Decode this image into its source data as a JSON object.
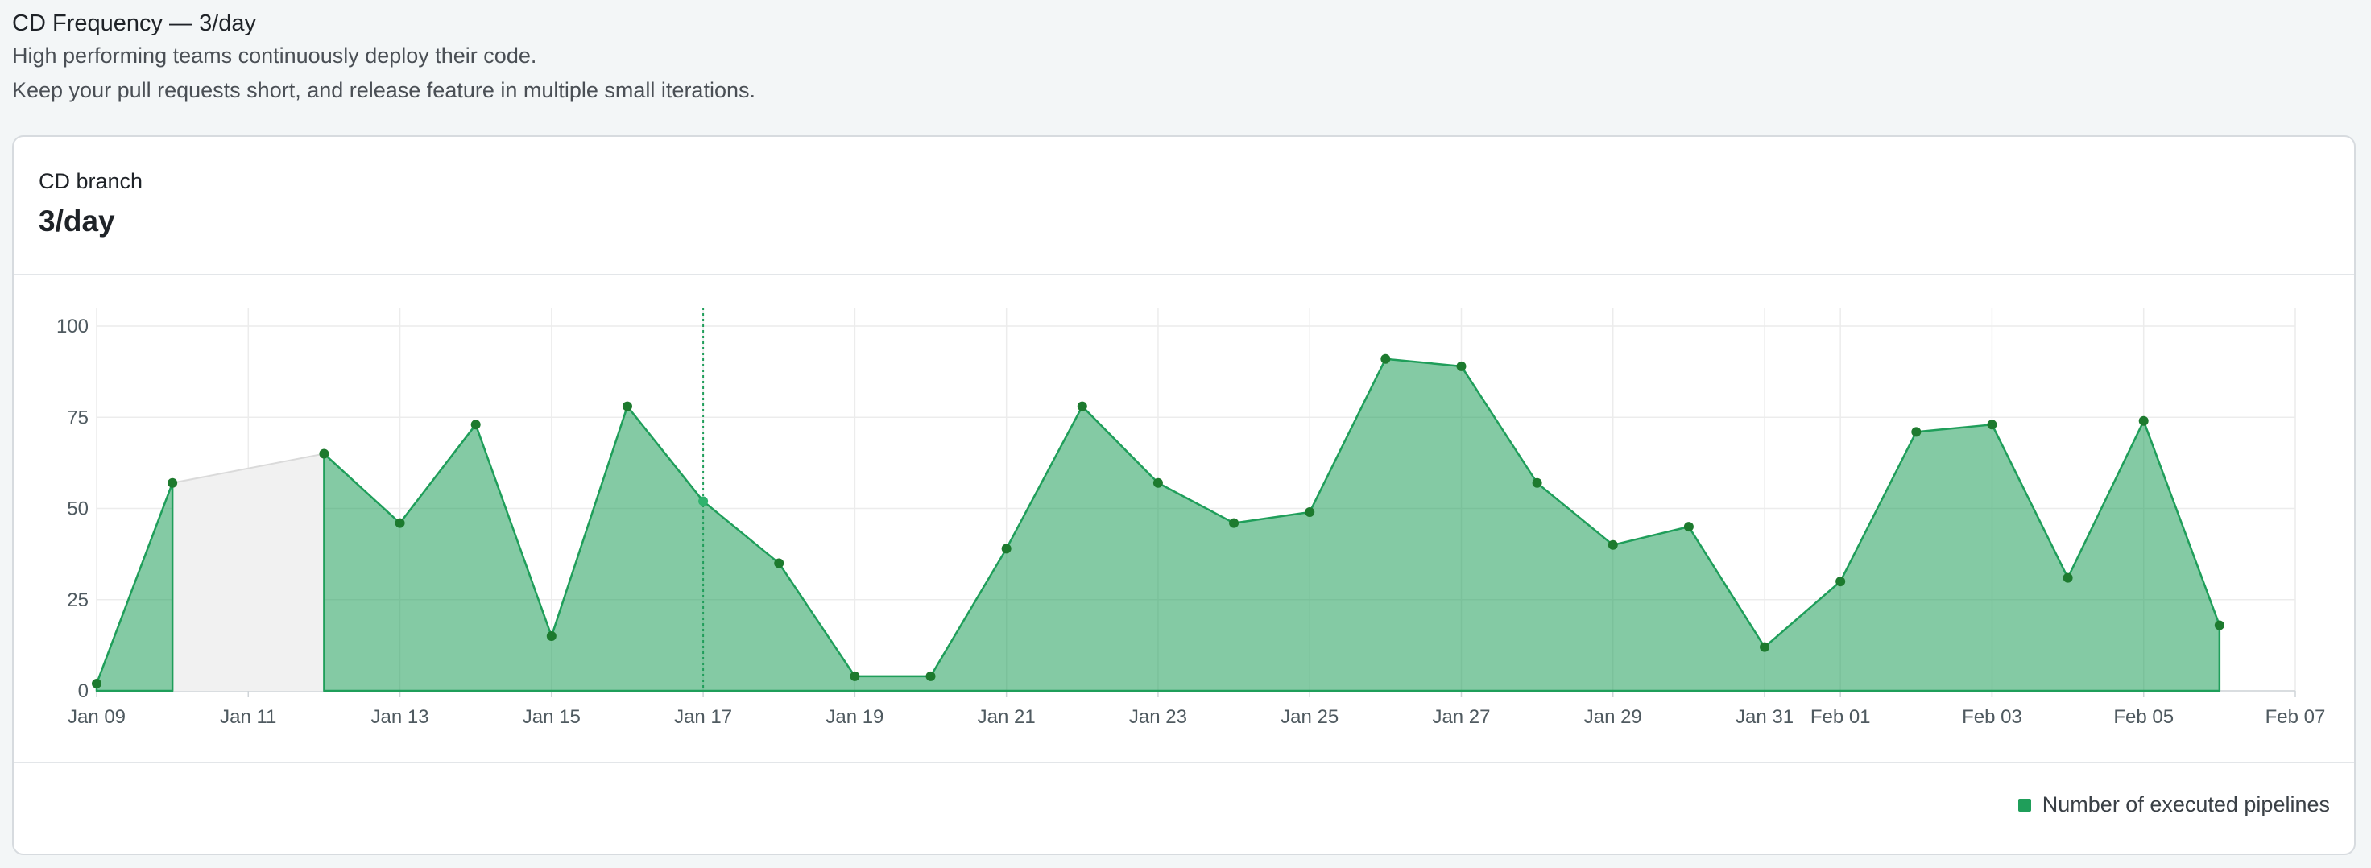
{
  "header": {
    "title": "CD Frequency — 3/day",
    "line1": "High performing teams continuously deploy their code.",
    "line2": "Keep your pull requests short, and release feature in multiple small iterations."
  },
  "card": {
    "label": "CD branch",
    "value": "3/day"
  },
  "legend": {
    "label": "Number of executed pipelines",
    "color": "#1f9e5a"
  },
  "chart_data": {
    "type": "area",
    "series": [
      {
        "name": "Number of executed pipelines",
        "points": [
          {
            "x": "2024-01-09",
            "y": 2
          },
          {
            "x": "2024-01-10",
            "y": 57
          },
          {
            "x": "2024-01-12",
            "y": 65
          },
          {
            "x": "2024-01-13",
            "y": 46
          },
          {
            "x": "2024-01-14",
            "y": 73
          },
          {
            "x": "2024-01-15",
            "y": 15
          },
          {
            "x": "2024-01-16",
            "y": 78
          },
          {
            "x": "2024-01-17",
            "y": 52
          },
          {
            "x": "2024-01-18",
            "y": 35
          },
          {
            "x": "2024-01-19",
            "y": 4
          },
          {
            "x": "2024-01-20",
            "y": 4
          },
          {
            "x": "2024-01-21",
            "y": 39
          },
          {
            "x": "2024-01-22",
            "y": 78
          },
          {
            "x": "2024-01-23",
            "y": 57
          },
          {
            "x": "2024-01-24",
            "y": 46
          },
          {
            "x": "2024-01-25",
            "y": 49
          },
          {
            "x": "2024-01-26",
            "y": 91
          },
          {
            "x": "2024-01-27",
            "y": 89
          },
          {
            "x": "2024-01-28",
            "y": 57
          },
          {
            "x": "2024-01-29",
            "y": 40
          },
          {
            "x": "2024-01-30",
            "y": 45
          },
          {
            "x": "2024-01-31",
            "y": 12
          },
          {
            "x": "2024-02-01",
            "y": 30
          },
          {
            "x": "2024-02-02",
            "y": 71
          },
          {
            "x": "2024-02-03",
            "y": 73
          },
          {
            "x": "2024-02-04",
            "y": 31
          },
          {
            "x": "2024-02-05",
            "y": 74
          },
          {
            "x": "2024-02-06",
            "y": 18
          }
        ],
        "color": "#1f9e5a"
      }
    ],
    "missing_range": [
      "2024-01-10",
      "2024-01-12"
    ],
    "hover_x": "2024-01-17",
    "x_ticks": [
      "Jan 09",
      "Jan 11",
      "Jan 13",
      "Jan 15",
      "Jan 17",
      "Jan 19",
      "Jan 21",
      "Jan 23",
      "Jan 25",
      "Jan 27",
      "Jan 29",
      "Jan 31",
      "Feb 01",
      "Feb 03",
      "Feb 05",
      "Feb 07"
    ],
    "x_tick_dates": [
      "2024-01-09",
      "2024-01-11",
      "2024-01-13",
      "2024-01-15",
      "2024-01-17",
      "2024-01-19",
      "2024-01-21",
      "2024-01-23",
      "2024-01-25",
      "2024-01-27",
      "2024-01-29",
      "2024-01-31",
      "2024-02-01",
      "2024-02-03",
      "2024-02-05",
      "2024-02-07"
    ],
    "xlim": [
      "2024-01-09",
      "2024-02-07"
    ],
    "y_ticks": [
      0,
      25,
      50,
      75,
      100
    ],
    "ylim": [
      0,
      100
    ],
    "grid": true,
    "legend_position": "bottom-right"
  }
}
